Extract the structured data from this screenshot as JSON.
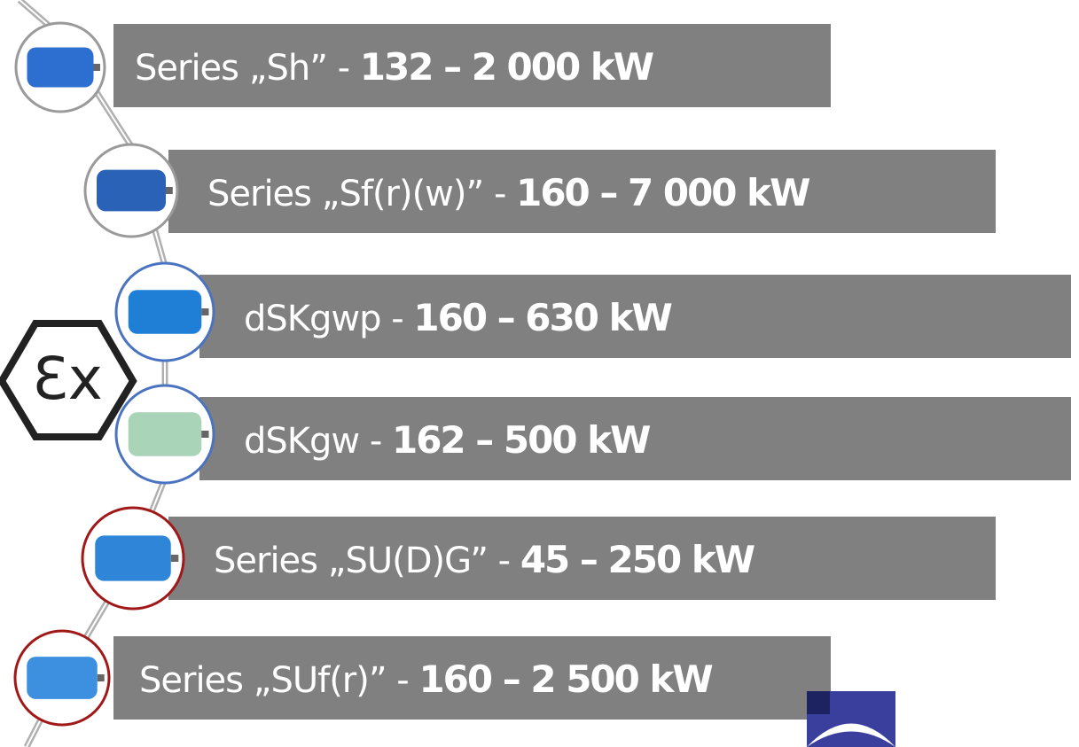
{
  "rows": [
    {
      "name": "Series „Sh” - ",
      "range": "132 – 2 000 kW"
    },
    {
      "name": "Series „Sf(r)(w)” - ",
      "range": "160 – 7 000 kW"
    },
    {
      "name": "dSKgwp - ",
      "range": "160 – 630 kW"
    },
    {
      "name": "dSKgw - ",
      "range": "162 – 500 kW"
    },
    {
      "name": "Series „SU(D)G” - ",
      "range": "45 – 250 kW"
    },
    {
      "name": "Series „SUf(r)” - ",
      "range": "160 – 2 500 kW"
    }
  ],
  "ex_mark": "Ɛx"
}
